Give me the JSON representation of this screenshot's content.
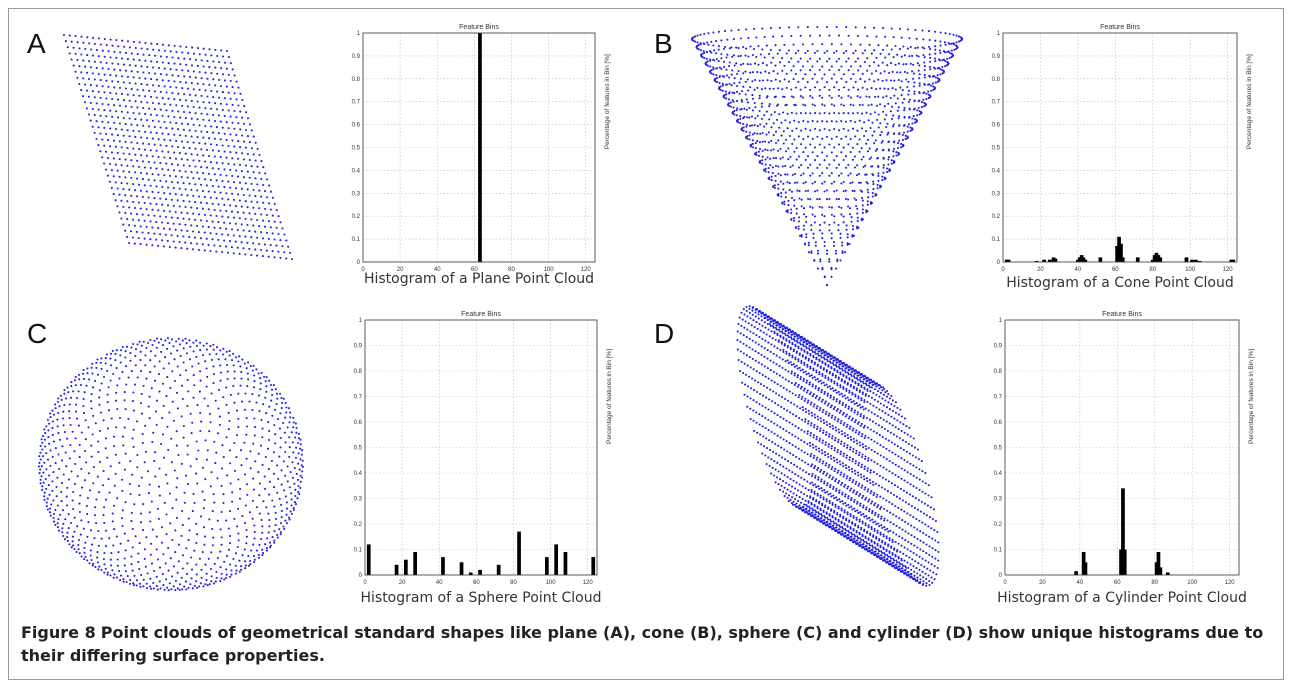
{
  "figure": {
    "label": "Figure 8",
    "caption": "Point clouds of geometrical standard shapes like plane (A), cone (B), sphere (C) and cylinder (D) show unique histograms due to their differing surface properties.",
    "point_color": "#2222dd",
    "bar_color": "#000000",
    "panels": [
      {
        "letter": "A",
        "shape": "plane",
        "histogram_title": "Feature Bins",
        "histogram_caption": "Histogram of a Plane Point Cloud",
        "ylabel": "Percentage of features in Bin [%]"
      },
      {
        "letter": "B",
        "shape": "cone",
        "histogram_title": "Feature Bins",
        "histogram_caption": "Histogram of a Cone Point Cloud",
        "ylabel": "Percentage of features in Bin [%]"
      },
      {
        "letter": "C",
        "shape": "sphere",
        "histogram_title": "Feature Bins",
        "histogram_caption": "Histogram of a Sphere Point Cloud",
        "ylabel": "Percentage of features in Bin [%]"
      },
      {
        "letter": "D",
        "shape": "cylinder",
        "histogram_title": "Feature Bins",
        "histogram_caption": "Histogram of a Cylinder Point Cloud",
        "ylabel": "Percentage of features in Bin [%]"
      }
    ]
  },
  "chart_data": [
    {
      "type": "bar",
      "panel": "A",
      "title": "Feature Bins",
      "xlabel": "",
      "ylabel": "Percentage of features in Bin [%]",
      "xlim": [
        0,
        125
      ],
      "ylim": [
        0,
        1
      ],
      "grid": true,
      "xticks": [
        0,
        20,
        40,
        60,
        80,
        100,
        120
      ],
      "yticks": [
        0,
        0.1,
        0.2,
        0.3,
        0.4,
        0.5,
        0.6,
        0.7,
        0.8,
        0.9,
        1
      ],
      "x": [
        63
      ],
      "values": [
        1.0
      ]
    },
    {
      "type": "bar",
      "panel": "B",
      "title": "Feature Bins",
      "xlabel": "",
      "ylabel": "Percentage of features in Bin [%]",
      "xlim": [
        0,
        125
      ],
      "ylim": [
        0,
        1
      ],
      "grid": true,
      "xticks": [
        0,
        20,
        40,
        60,
        80,
        100,
        120
      ],
      "yticks": [
        0,
        0.1,
        0.2,
        0.3,
        0.4,
        0.5,
        0.6,
        0.7,
        0.8,
        0.9,
        1
      ],
      "x": [
        2,
        3,
        18,
        22,
        25,
        27,
        28,
        40,
        41,
        42,
        43,
        44,
        52,
        61,
        62,
        63,
        64,
        72,
        80,
        81,
        82,
        83,
        84,
        98,
        101,
        103,
        105,
        122,
        123
      ],
      "values": [
        0.01,
        0.01,
        0.005,
        0.01,
        0.01,
        0.02,
        0.015,
        0.01,
        0.02,
        0.03,
        0.02,
        0.01,
        0.02,
        0.07,
        0.11,
        0.08,
        0.02,
        0.02,
        0.01,
        0.03,
        0.04,
        0.03,
        0.02,
        0.02,
        0.01,
        0.01,
        0.005,
        0.01,
        0.01
      ]
    },
    {
      "type": "bar",
      "panel": "C",
      "title": "Feature Bins",
      "xlabel": "",
      "ylabel": "Percentage of features in Bin [%]",
      "xlim": [
        0,
        125
      ],
      "ylim": [
        0,
        1
      ],
      "grid": true,
      "xticks": [
        0,
        20,
        40,
        60,
        80,
        100,
        120
      ],
      "yticks": [
        0,
        0.1,
        0.2,
        0.3,
        0.4,
        0.5,
        0.6,
        0.7,
        0.8,
        0.9,
        1
      ],
      "x": [
        2,
        17,
        22,
        27,
        42,
        52,
        57,
        62,
        72,
        83,
        98,
        103,
        108,
        123
      ],
      "values": [
        0.12,
        0.04,
        0.06,
        0.09,
        0.07,
        0.05,
        0.01,
        0.02,
        0.04,
        0.17,
        0.07,
        0.12,
        0.09,
        0.07
      ]
    },
    {
      "type": "bar",
      "panel": "D",
      "title": "Feature Bins",
      "xlabel": "",
      "ylabel": "Percentage of features in Bin [%]",
      "xlim": [
        0,
        125
      ],
      "ylim": [
        0,
        1
      ],
      "grid": true,
      "xticks": [
        0,
        20,
        40,
        60,
        80,
        100,
        120
      ],
      "yticks": [
        0,
        0.1,
        0.2,
        0.3,
        0.4,
        0.5,
        0.6,
        0.7,
        0.8,
        0.9,
        1
      ],
      "x": [
        38,
        42,
        43,
        62,
        63,
        64,
        81,
        82,
        83,
        87
      ],
      "values": [
        0.015,
        0.09,
        0.05,
        0.1,
        0.34,
        0.1,
        0.05,
        0.09,
        0.03,
        0.01
      ]
    }
  ]
}
